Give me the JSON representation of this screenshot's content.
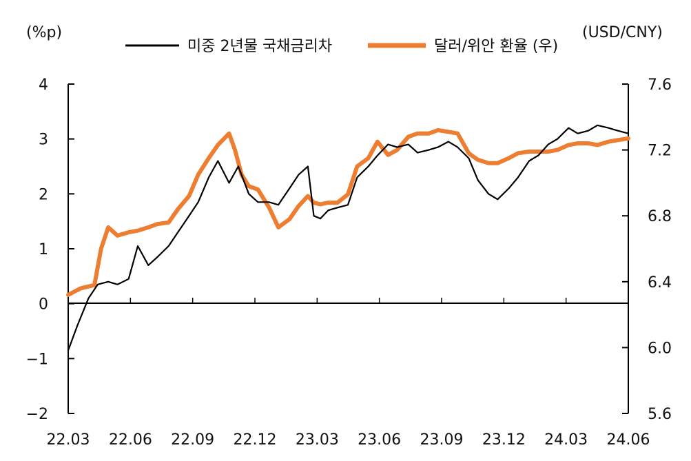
{
  "chart_data": {
    "type": "line",
    "left_unit": "(%p)",
    "right_unit": "(USD/CNY)",
    "x_ticks": [
      "22.03",
      "22.06",
      "22.09",
      "22.12",
      "23.03",
      "23.06",
      "23.09",
      "23.12",
      "24.03",
      "24.06"
    ],
    "left_ticks": [
      "4",
      "3",
      "2",
      "1",
      "0",
      "−1",
      "−2"
    ],
    "right_ticks": [
      "7.6",
      "7.2",
      "6.8",
      "6.4",
      "6.0",
      "5.6"
    ],
    "left_ylim": [
      -2,
      4
    ],
    "right_ylim": [
      5.6,
      7.6
    ],
    "legend_position": "top",
    "series": [
      {
        "name": "미중 2년물 국채금리차",
        "axis": "left",
        "color": "#000000",
        "x": [
          "2022-03-01",
          "2022-03-15",
          "2022-04-01",
          "2022-04-15",
          "2022-05-01",
          "2022-05-15",
          "2022-06-01",
          "2022-06-15",
          "2022-07-01",
          "2022-07-15",
          "2022-08-01",
          "2022-08-15",
          "2022-09-01",
          "2022-09-15",
          "2022-10-01",
          "2022-10-15",
          "2022-11-01",
          "2022-11-15",
          "2022-12-01",
          "2022-12-15",
          "2023-01-01",
          "2023-01-15",
          "2023-02-01",
          "2023-02-15",
          "2023-03-01",
          "2023-03-10",
          "2023-03-20",
          "2023-04-01",
          "2023-04-15",
          "2023-05-01",
          "2023-05-15",
          "2023-06-01",
          "2023-06-15",
          "2023-07-01",
          "2023-07-15",
          "2023-08-01",
          "2023-08-15",
          "2023-09-01",
          "2023-09-15",
          "2023-10-01",
          "2023-10-15",
          "2023-11-01",
          "2023-11-15",
          "2023-12-01",
          "2023-12-15",
          "2024-01-01",
          "2024-01-15",
          "2024-02-01",
          "2024-02-15",
          "2024-03-01",
          "2024-03-15",
          "2024-04-01",
          "2024-04-15",
          "2024-05-01",
          "2024-05-15",
          "2024-06-01",
          "2024-06-15",
          "2024-07-01"
        ],
        "y": [
          -0.85,
          -0.4,
          0.1,
          0.35,
          0.4,
          0.35,
          0.45,
          1.05,
          0.7,
          0.85,
          1.05,
          1.3,
          1.6,
          1.85,
          2.3,
          2.6,
          2.2,
          2.5,
          2.0,
          1.85,
          1.85,
          1.8,
          2.1,
          2.35,
          2.5,
          1.6,
          1.55,
          1.7,
          1.75,
          1.8,
          2.3,
          2.5,
          2.7,
          2.9,
          2.85,
          2.9,
          2.75,
          2.8,
          2.85,
          2.95,
          2.85,
          2.65,
          2.25,
          2.0,
          1.9,
          2.1,
          2.3,
          2.6,
          2.7,
          2.9,
          3.0,
          3.2,
          3.1,
          3.15,
          3.25,
          3.2,
          3.15,
          3.1
        ]
      },
      {
        "name": "달러/위안 환율 (우)",
        "axis": "right",
        "color": "#ED7D31",
        "x": [
          "2022-03-01",
          "2022-03-20",
          "2022-04-10",
          "2022-04-20",
          "2022-05-01",
          "2022-05-15",
          "2022-06-01",
          "2022-06-15",
          "2022-07-01",
          "2022-07-15",
          "2022-08-01",
          "2022-08-15",
          "2022-09-01",
          "2022-09-15",
          "2022-10-01",
          "2022-10-15",
          "2022-11-01",
          "2022-11-10",
          "2022-11-20",
          "2022-12-01",
          "2022-12-15",
          "2023-01-01",
          "2023-01-15",
          "2023-02-01",
          "2023-02-15",
          "2023-03-01",
          "2023-03-10",
          "2023-03-20",
          "2023-04-01",
          "2023-04-15",
          "2023-05-01",
          "2023-05-15",
          "2023-06-01",
          "2023-06-15",
          "2023-07-01",
          "2023-07-15",
          "2023-08-01",
          "2023-08-15",
          "2023-09-01",
          "2023-09-15",
          "2023-10-01",
          "2023-10-15",
          "2023-11-01",
          "2023-11-15",
          "2023-12-01",
          "2023-12-15",
          "2024-01-01",
          "2024-01-15",
          "2024-02-01",
          "2024-02-15",
          "2024-03-01",
          "2024-03-15",
          "2024-04-01",
          "2024-04-15",
          "2024-05-01",
          "2024-05-15",
          "2024-06-01",
          "2024-06-15",
          "2024-07-01"
        ],
        "y": [
          6.32,
          6.36,
          6.38,
          6.6,
          6.73,
          6.68,
          6.7,
          6.71,
          6.73,
          6.75,
          6.76,
          6.84,
          6.92,
          7.05,
          7.15,
          7.23,
          7.3,
          7.2,
          7.05,
          6.98,
          6.96,
          6.85,
          6.73,
          6.78,
          6.86,
          6.92,
          6.88,
          6.87,
          6.88,
          6.88,
          6.93,
          7.1,
          7.15,
          7.25,
          7.17,
          7.2,
          7.28,
          7.3,
          7.3,
          7.32,
          7.31,
          7.3,
          7.18,
          7.14,
          7.12,
          7.12,
          7.15,
          7.18,
          7.19,
          7.19,
          7.19,
          7.2,
          7.23,
          7.24,
          7.24,
          7.23,
          7.25,
          7.26,
          7.27
        ]
      }
    ]
  }
}
